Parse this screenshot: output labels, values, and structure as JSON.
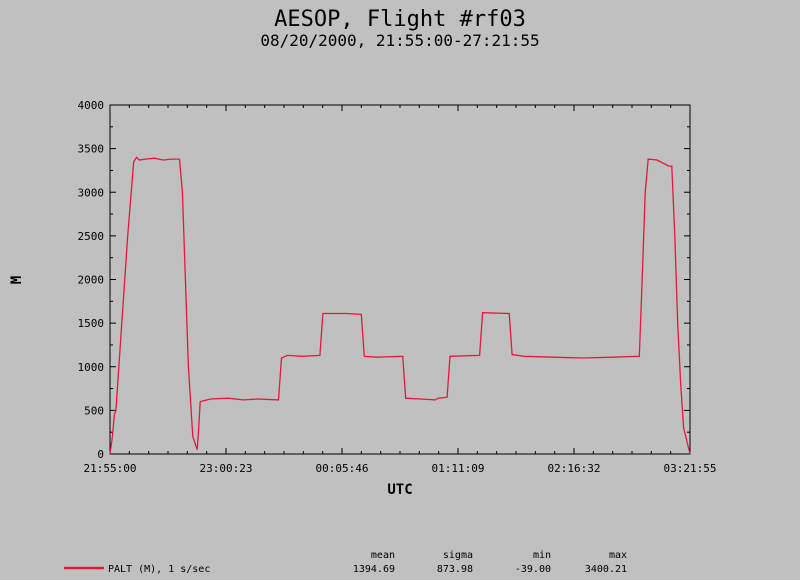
{
  "chart_data": {
    "type": "line",
    "title": "AESOP, Flight #rf03",
    "subtitle": "08/20/2000, 21:55:00-27:21:55",
    "xlabel": "UTC",
    "ylabel": "M",
    "ylim": [
      0,
      4000
    ],
    "yticks": [
      0,
      500,
      1000,
      1500,
      2000,
      2500,
      3000,
      3500,
      4000
    ],
    "xlim_seconds": [
      0,
      19615
    ],
    "xticks": [
      {
        "t": 0,
        "label": "21:55:00"
      },
      {
        "t": 3923,
        "label": "23:00:23"
      },
      {
        "t": 7846,
        "label": "00:05:46"
      },
      {
        "t": 11769,
        "label": "01:11:09"
      },
      {
        "t": 15692,
        "label": "02:16:32"
      },
      {
        "t": 19615,
        "label": "03:21:55"
      }
    ],
    "series": [
      {
        "name": "PALT (M), 1 s/sec",
        "color": "#e8173f",
        "x": [
          0,
          80,
          150,
          200,
          400,
          600,
          800,
          900,
          1000,
          1200,
          1500,
          1800,
          2100,
          2350,
          2450,
          2550,
          2650,
          2800,
          2950,
          3000,
          3050,
          3400,
          4000,
          4500,
          5000,
          5700,
          5800,
          6000,
          6500,
          7100,
          7200,
          8000,
          8500,
          8600,
          9000,
          9900,
          10000,
          10500,
          11000,
          11100,
          11400,
          11500,
          12500,
          12600,
          13500,
          13600,
          14000,
          15000,
          16000,
          17000,
          17900,
          18000,
          18100,
          18200,
          18500,
          18900,
          19000,
          19100,
          19200,
          19300,
          19400,
          19615
        ],
        "values": [
          0,
          200,
          450,
          500,
          1500,
          2500,
          3350,
          3400,
          3370,
          3380,
          3390,
          3370,
          3380,
          3380,
          3000,
          2000,
          1000,
          200,
          50,
          300,
          600,
          630,
          640,
          620,
          630,
          620,
          1100,
          1130,
          1120,
          1130,
          1610,
          1610,
          1600,
          1120,
          1110,
          1120,
          640,
          630,
          620,
          640,
          650,
          1120,
          1130,
          1620,
          1610,
          1140,
          1120,
          1110,
          1100,
          1110,
          1120,
          2000,
          3000,
          3380,
          3370,
          3300,
          3300,
          2500,
          1500,
          800,
          300,
          0
        ]
      }
    ],
    "stats": {
      "headers": [
        "mean",
        "sigma",
        "min",
        "max"
      ],
      "values": [
        "1394.69",
        "873.98",
        "-39.00",
        "3400.21"
      ]
    },
    "grid": false,
    "legend_position": "bottom-left"
  }
}
